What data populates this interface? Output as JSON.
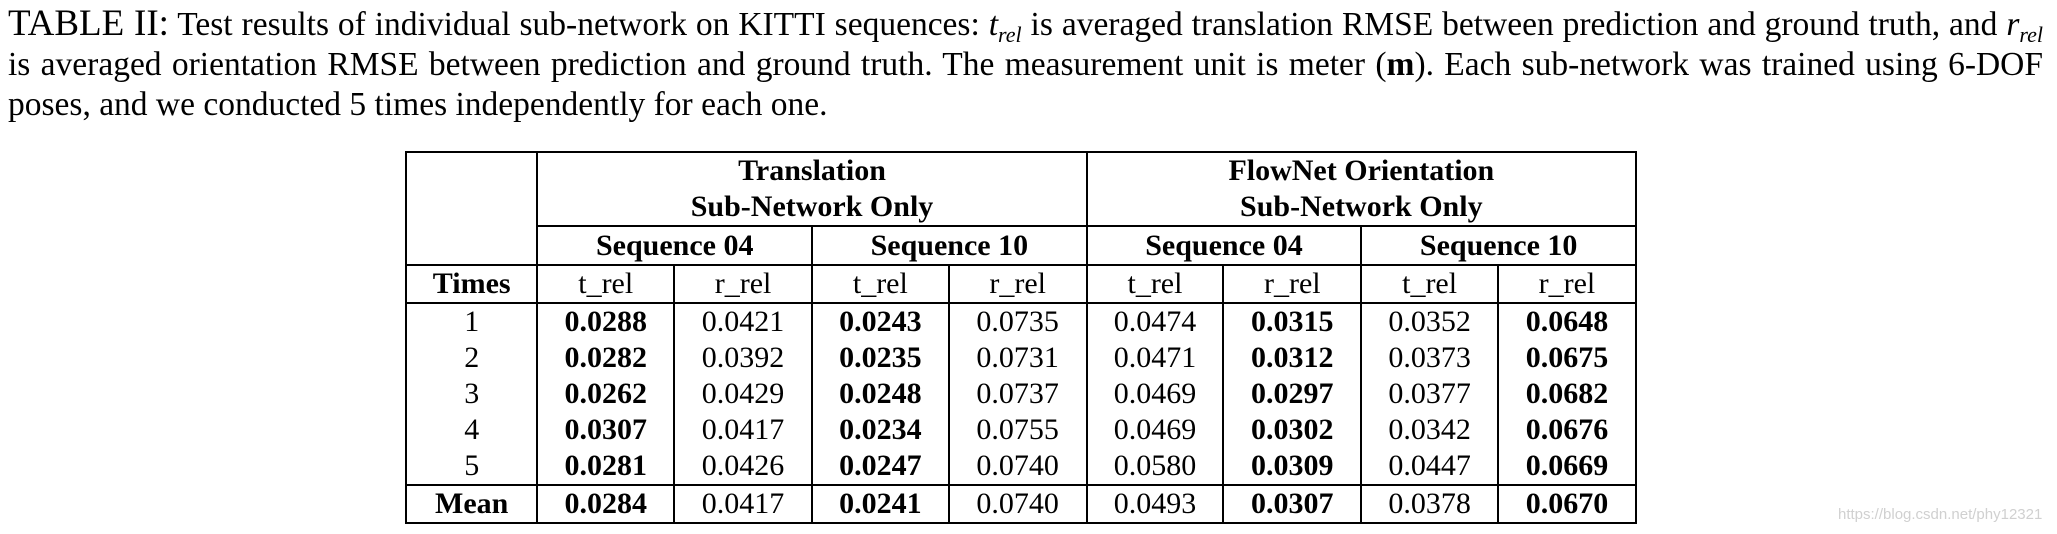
{
  "caption": {
    "label": "TABLE II:",
    "part1": " Test results of individual sub-network on KITTI sequences: ",
    "sym_t": "t",
    "sub_rel_1": "rel",
    "part2": " is averaged translation RMSE between prediction and ground truth, and ",
    "sym_r": "r",
    "sub_rel_2": "rel",
    "part3": " is averaged orientation RMSE between prediction and ground truth. The measurement unit is meter (",
    "unit": "m",
    "part4": "). Each sub-network was trained using 6-DOF poses, and we conducted 5 times independently for each one."
  },
  "table": {
    "groups": [
      {
        "line1": "Translation",
        "line2": "Sub-Network Only"
      },
      {
        "line1": "FlowNet Orientation",
        "line2": "Sub-Network Only"
      }
    ],
    "sequences": [
      "Sequence 04",
      "Sequence 10",
      "Sequence 04",
      "Sequence 10"
    ],
    "row_header": "Times",
    "metrics": [
      "t_rel",
      "r_rel",
      "t_rel",
      "r_rel",
      "t_rel",
      "r_rel",
      "t_rel",
      "r_rel"
    ],
    "rows": [
      {
        "label": "1",
        "values": [
          "0.0288",
          "0.0421",
          "0.0243",
          "0.0735",
          "0.0474",
          "0.0315",
          "0.0352",
          "0.0648"
        ]
      },
      {
        "label": "2",
        "values": [
          "0.0282",
          "0.0392",
          "0.0235",
          "0.0731",
          "0.0471",
          "0.0312",
          "0.0373",
          "0.0675"
        ]
      },
      {
        "label": "3",
        "values": [
          "0.0262",
          "0.0429",
          "0.0248",
          "0.0737",
          "0.0469",
          "0.0297",
          "0.0377",
          "0.0682"
        ]
      },
      {
        "label": "4",
        "values": [
          "0.0307",
          "0.0417",
          "0.0234",
          "0.0755",
          "0.0469",
          "0.0302",
          "0.0342",
          "0.0676"
        ]
      },
      {
        "label": "5",
        "values": [
          "0.0281",
          "0.0426",
          "0.0247",
          "0.0740",
          "0.0580",
          "0.0309",
          "0.0447",
          "0.0669"
        ]
      }
    ],
    "mean": {
      "label": "Mean",
      "values": [
        "0.0284",
        "0.0417",
        "0.0241",
        "0.0740",
        "0.0493",
        "0.0307",
        "0.0378",
        "0.0670"
      ]
    }
  },
  "watermark": "https://blog.csdn.net/phy12321"
}
